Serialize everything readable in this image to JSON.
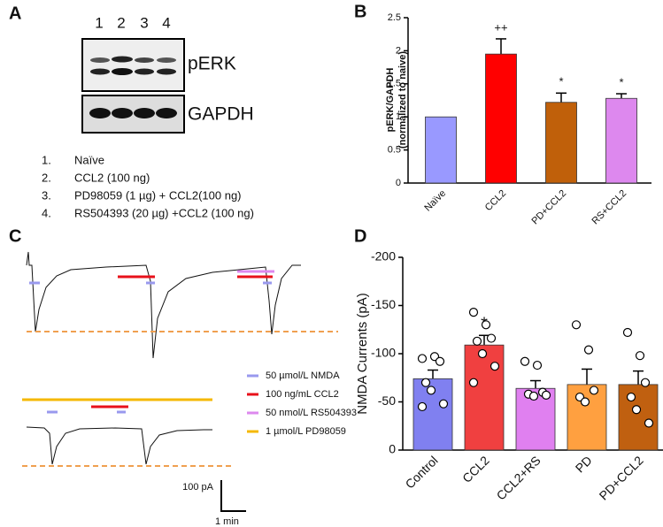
{
  "panel_a": {
    "letter": "A",
    "lanes": [
      "1",
      "2",
      "3",
      "4"
    ],
    "bands": [
      "pERK",
      "GAPDH"
    ],
    "list": [
      {
        "number": "1.",
        "text": "Naïve"
      },
      {
        "number": "2.",
        "text": "CCL2 (100 ng)"
      },
      {
        "number": "3.",
        "text": "PD98059 (1 µg) + CCL2(100 ng)"
      },
      {
        "number": "4.",
        "text": "RS504393 (20 µg) +CCL2 (100 ng)"
      }
    ]
  },
  "panel_c": {
    "letter": "C",
    "legend": [
      {
        "label": "50 µmol/L NMDA",
        "color": "#9999ee"
      },
      {
        "label": "100 ng/mL CCL2",
        "color": "#e8101a"
      },
      {
        "label": "50 nmol/L  RS504393",
        "color": "#dd88ee"
      },
      {
        "label": "1 µmol/L  PD98059",
        "color": "#f5b800"
      }
    ],
    "scale_y": "100 pA",
    "scale_x": "1 min"
  },
  "chart_data": [
    {
      "letter": "B",
      "type": "bar",
      "y_label": [
        "pERK/GAPDH",
        "(normalized to naive)"
      ],
      "categories": [
        "Naïve",
        "CCL2",
        "PD+CCL2",
        "RS+CCL2"
      ],
      "values": [
        1,
        1.95,
        1.22,
        1.28
      ],
      "errors": [
        null,
        0.23,
        0.14,
        0.07
      ],
      "annotations": [
        null,
        "++",
        "*",
        "*"
      ],
      "colors": [
        "#9999ff",
        "#ff0000",
        "#c0600a",
        "#dd88ee"
      ],
      "ylim": [
        0,
        2.5
      ],
      "yticks": [
        0,
        0.5,
        1,
        1.5,
        2,
        2.5
      ]
    },
    {
      "letter": "D",
      "type": "bar",
      "y_label": "NMDA Currents (pA)",
      "categories": [
        "Control",
        "CCL2",
        "CCL2+RS",
        "PD",
        "PD+CCL2"
      ],
      "values": [
        -74,
        -109,
        -64,
        -68,
        -68
      ],
      "errors": [
        9,
        10,
        8,
        16,
        14
      ],
      "annotations": [
        null,
        "*",
        null,
        null,
        null
      ],
      "colors": [
        "#8080f0",
        "#f04040",
        "#e080f0",
        "#ffa040",
        "#c06010"
      ],
      "points": [
        [
          -95,
          -97,
          -92,
          -70,
          -62,
          -48,
          -45
        ],
        [
          -143,
          -130,
          -116,
          -113,
          -100,
          -87,
          -70
        ],
        [
          -92,
          -88,
          -60,
          -58,
          -56,
          -57
        ],
        [
          -130,
          -104,
          -62,
          -55,
          -50
        ],
        [
          -122,
          -98,
          -70,
          -55,
          -42,
          -28
        ]
      ],
      "ylim": [
        0,
        -200
      ],
      "yticks": [
        0,
        -50,
        -100,
        -150,
        -200
      ]
    }
  ]
}
